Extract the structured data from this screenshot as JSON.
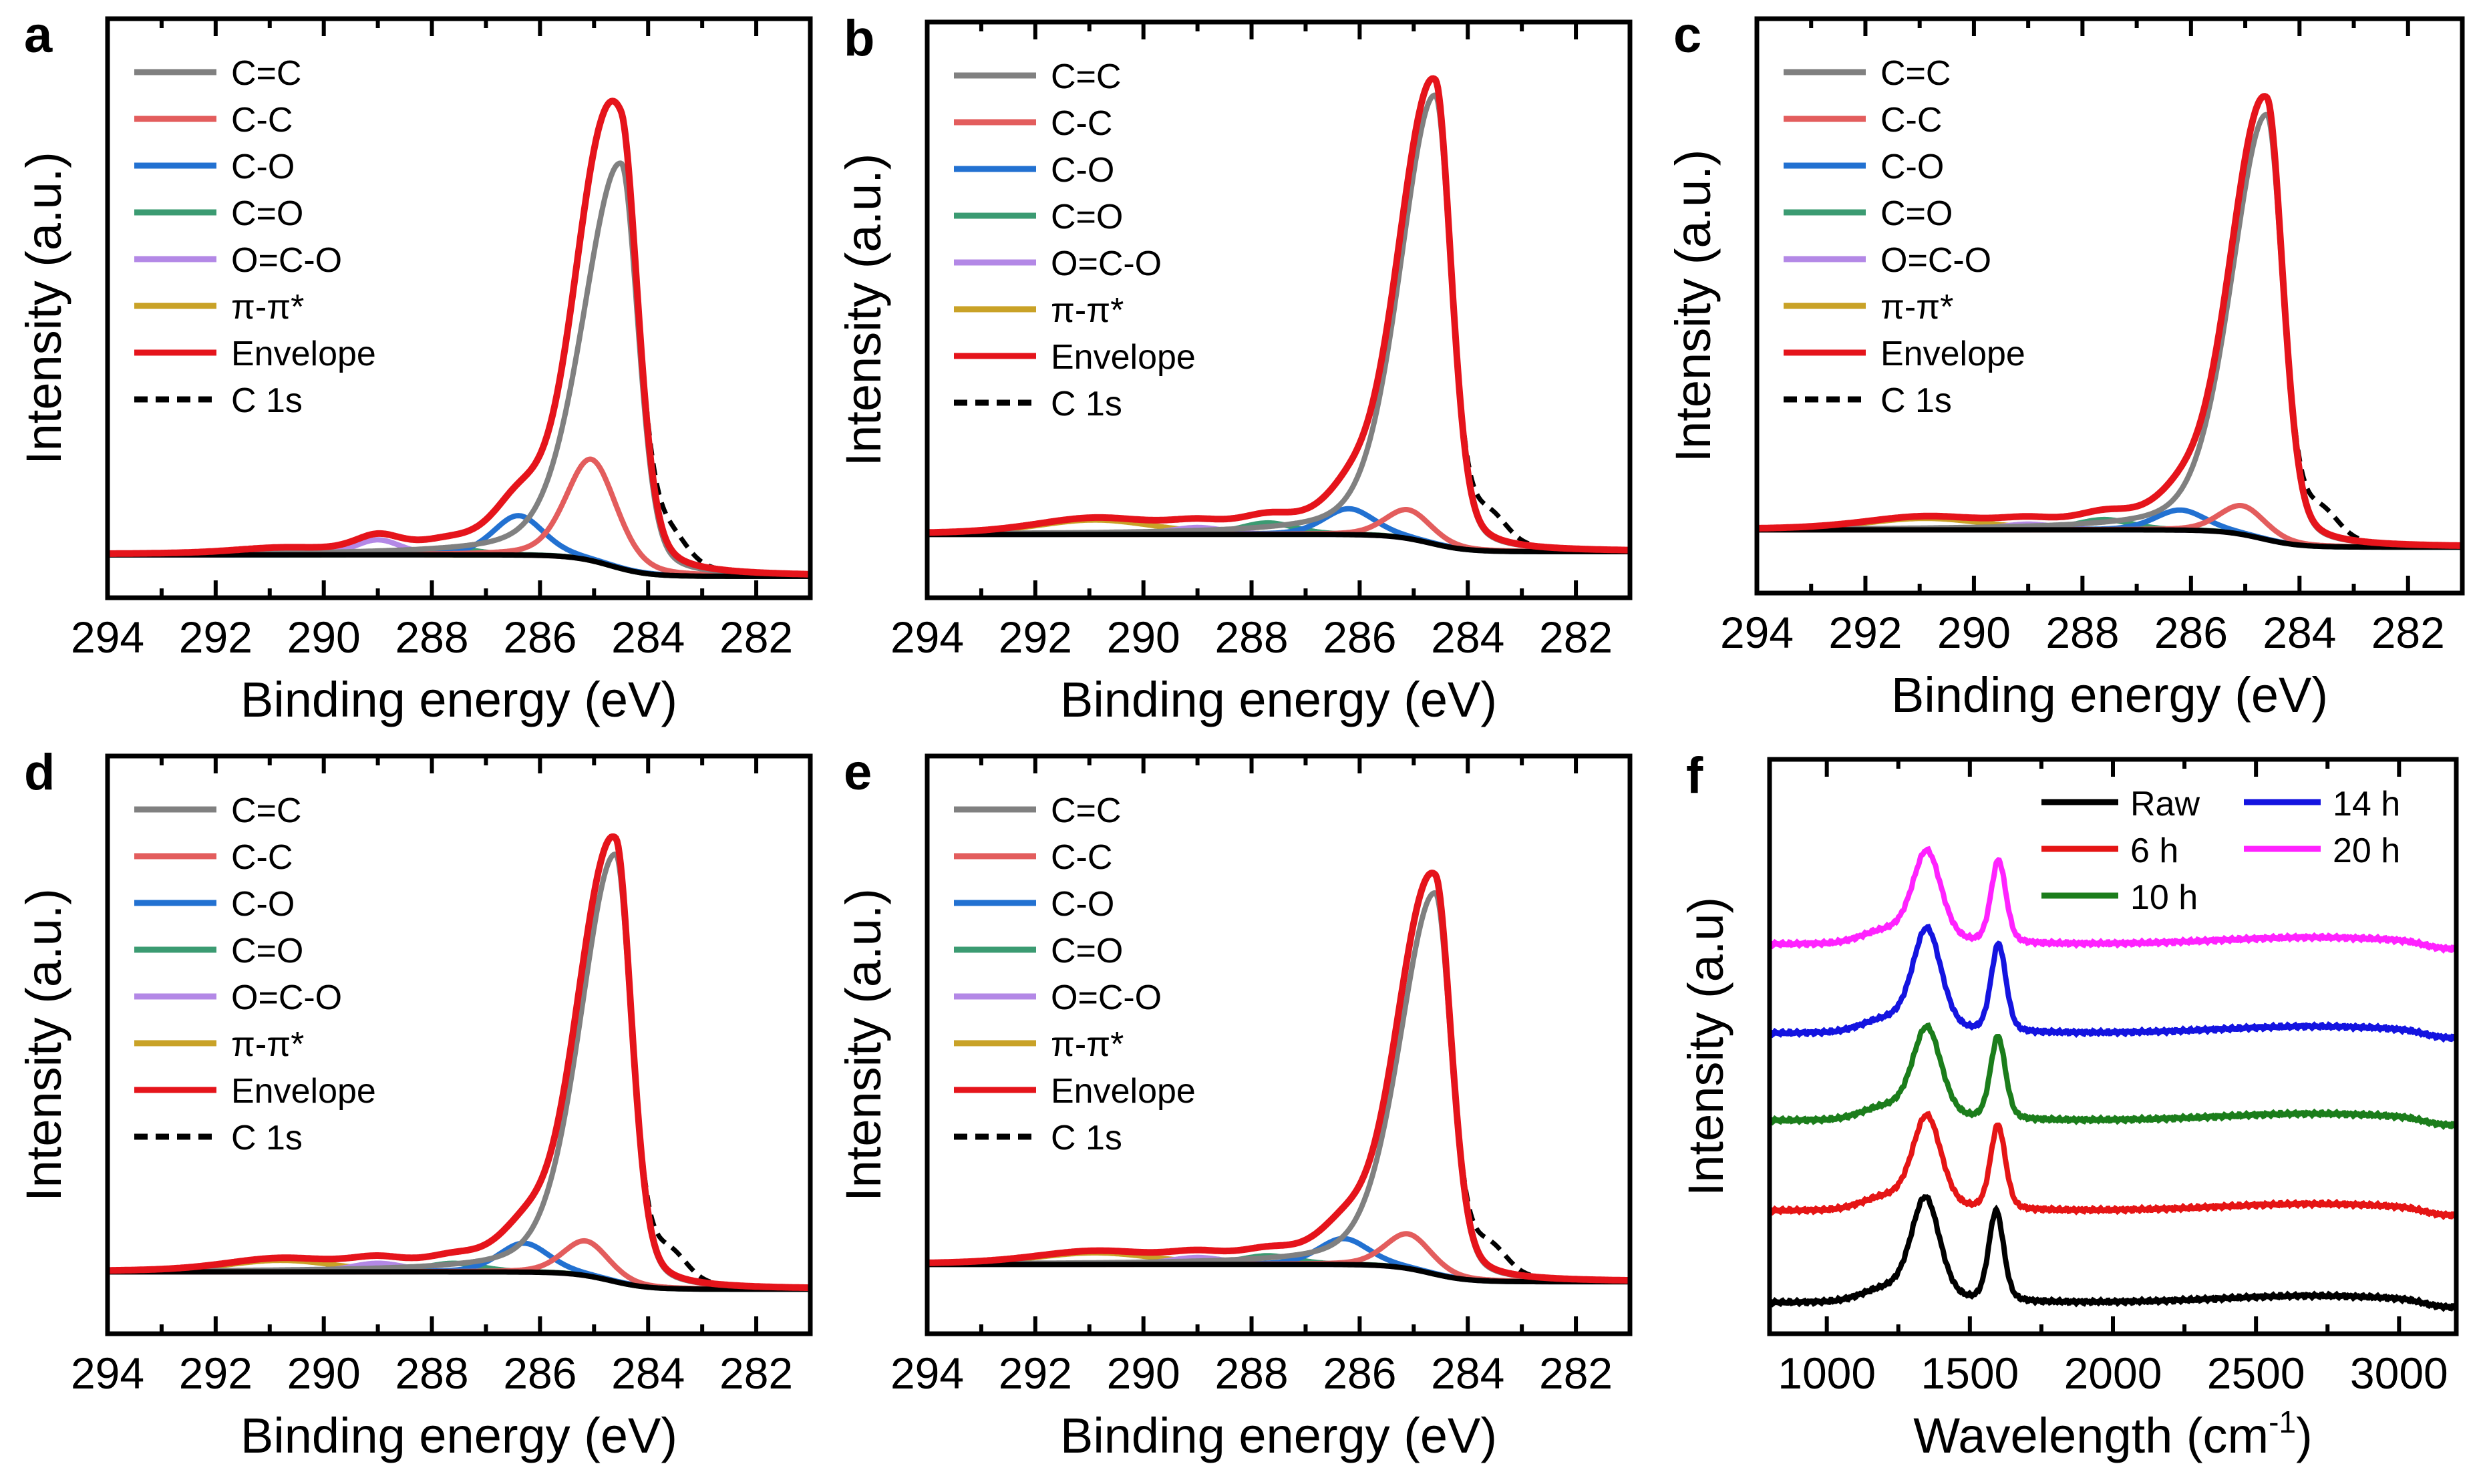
{
  "chart_data": [
    {
      "panel": "a",
      "type": "line",
      "xlabel": "Binding energy (eV)",
      "ylabel": "Intensity (a.u.)",
      "xlim": [
        294,
        281
      ],
      "ylim": [
        0,
        1
      ],
      "grid": false,
      "reversed_x": true,
      "xticks": [
        "294",
        "292",
        "290",
        "288",
        "286",
        "284",
        "282"
      ],
      "legend_position": "top-left",
      "legend": [
        "C=C",
        "C-C",
        "C-O",
        "C=O",
        "O=C-O",
        "π-π*",
        "Envelope",
        "C 1s"
      ],
      "background": {
        "high_be": 0.074,
        "low_be": 0.037
      },
      "components": [
        {
          "name": "C=C",
          "center": 284.5,
          "height": 0.7,
          "fwhm": 0.75
        },
        {
          "name": "C-C",
          "center": 285.05,
          "height": 0.175,
          "fwhm": 1.1
        },
        {
          "name": "C-O",
          "center": 286.4,
          "height": 0.068,
          "fwhm": 1.1
        },
        {
          "name": "C=O",
          "center": 287.7,
          "height": 0.012,
          "fwhm": 1.2
        },
        {
          "name": "O=C-O",
          "center": 289.0,
          "height": 0.026,
          "fwhm": 1.0
        },
        {
          "name": "π-π*",
          "center": 290.8,
          "height": 0.008,
          "fwhm": 2.0
        }
      ]
    },
    {
      "panel": "b",
      "type": "line",
      "xlabel": "Binding energy (eV)",
      "ylabel": "Intensity (a.u.)",
      "xlim": [
        294,
        281
      ],
      "ylim": [
        0,
        1
      ],
      "grid": false,
      "reversed_x": true,
      "xticks": [
        "294",
        "292",
        "290",
        "288",
        "286",
        "284",
        "282"
      ],
      "legend_position": "top-left",
      "legend": [
        "C=C",
        "C-C",
        "C-O",
        "C=O",
        "O=C-O",
        "π-π*",
        "Envelope",
        "C 1s"
      ],
      "background": {
        "high_be": 0.11,
        "low_be": 0.08
      },
      "components": [
        {
          "name": "C=C",
          "center": 284.6,
          "height": 0.78,
          "fwhm": 0.7
        },
        {
          "name": "C-C",
          "center": 285.1,
          "height": 0.05,
          "fwhm": 1.0
        },
        {
          "name": "C-O",
          "center": 286.2,
          "height": 0.045,
          "fwhm": 1.1
        },
        {
          "name": "C=O",
          "center": 287.7,
          "height": 0.02,
          "fwhm": 1.2
        },
        {
          "name": "O=C-O",
          "center": 289.0,
          "height": 0.012,
          "fwhm": 1.2
        },
        {
          "name": "π-π*",
          "center": 290.9,
          "height": 0.025,
          "fwhm": 2.6
        }
      ]
    },
    {
      "panel": "c",
      "type": "line",
      "xlabel": "Binding energy (eV)",
      "ylabel": "Intensity (a.u.)",
      "xlim": [
        294,
        281
      ],
      "ylim": [
        0,
        1
      ],
      "grid": false,
      "reversed_x": true,
      "xticks": [
        "294",
        "292",
        "290",
        "288",
        "286",
        "284",
        "282"
      ],
      "legend_position": "top-left",
      "legend": [
        "C=C",
        "C-C",
        "C-O",
        "C=O",
        "O=C-O",
        "π-π*",
        "Envelope",
        "C 1s"
      ],
      "background": {
        "high_be": 0.11,
        "low_be": 0.08
      },
      "components": [
        {
          "name": "C=C",
          "center": 284.6,
          "height": 0.74,
          "fwhm": 0.7
        },
        {
          "name": "C-C",
          "center": 285.05,
          "height": 0.05,
          "fwhm": 1.0
        },
        {
          "name": "C-O",
          "center": 286.2,
          "height": 0.035,
          "fwhm": 1.1
        },
        {
          "name": "C=O",
          "center": 287.6,
          "height": 0.018,
          "fwhm": 1.2
        },
        {
          "name": "O=C-O",
          "center": 289.0,
          "height": 0.01,
          "fwhm": 1.2
        },
        {
          "name": "π-π*",
          "center": 290.9,
          "height": 0.02,
          "fwhm": 2.6
        }
      ]
    },
    {
      "panel": "d",
      "type": "line",
      "xlabel": "Binding energy (eV)",
      "ylabel": "Intensity (a.u.)",
      "xlim": [
        294,
        281
      ],
      "ylim": [
        0,
        1
      ],
      "grid": false,
      "reversed_x": true,
      "xticks": [
        "294",
        "292",
        "290",
        "288",
        "286",
        "284",
        "282"
      ],
      "legend_position": "top-left",
      "legend": [
        "C=C",
        "C-C",
        "C-O",
        "C=O",
        "O=C-O",
        "π-π*",
        "Envelope",
        "C 1s"
      ],
      "background": {
        "high_be": 0.107,
        "low_be": 0.077
      },
      "components": [
        {
          "name": "C=C",
          "center": 284.6,
          "height": 0.74,
          "fwhm": 0.7
        },
        {
          "name": "C-C",
          "center": 285.15,
          "height": 0.06,
          "fwhm": 1.0
        },
        {
          "name": "C-O",
          "center": 286.3,
          "height": 0.05,
          "fwhm": 1.1
        },
        {
          "name": "C=O",
          "center": 287.6,
          "height": 0.015,
          "fwhm": 1.2
        },
        {
          "name": "O=C-O",
          "center": 289.0,
          "height": 0.015,
          "fwhm": 1.2
        },
        {
          "name": "π-π*",
          "center": 290.8,
          "height": 0.02,
          "fwhm": 2.4
        }
      ]
    },
    {
      "panel": "e",
      "type": "line",
      "xlabel": "Binding energy (eV)",
      "ylabel": "Intensity (a.u.)",
      "xlim": [
        294,
        281
      ],
      "ylim": [
        0,
        1
      ],
      "grid": false,
      "reversed_x": true,
      "xticks": [
        "294",
        "292",
        "290",
        "288",
        "286",
        "284",
        "282"
      ],
      "legend_position": "top-left",
      "legend": [
        "C=C",
        "C-C",
        "C-O",
        "C=O",
        "O=C-O",
        "π-π*",
        "Envelope",
        "C 1s"
      ],
      "background": {
        "high_be": 0.12,
        "low_be": 0.09
      },
      "components": [
        {
          "name": "C=C",
          "center": 284.6,
          "height": 0.66,
          "fwhm": 0.7
        },
        {
          "name": "C-C",
          "center": 285.1,
          "height": 0.06,
          "fwhm": 1.0
        },
        {
          "name": "C-O",
          "center": 286.3,
          "height": 0.045,
          "fwhm": 1.1
        },
        {
          "name": "C=O",
          "center": 287.7,
          "height": 0.015,
          "fwhm": 1.2
        },
        {
          "name": "O=C-O",
          "center": 289.0,
          "height": 0.012,
          "fwhm": 1.2
        },
        {
          "name": "π-π*",
          "center": 290.9,
          "height": 0.02,
          "fwhm": 2.6
        }
      ]
    },
    {
      "panel": "f",
      "type": "line",
      "xlabel": "Wavelength (cm",
      "xlabel_sup": "-1",
      "xlabel_end": ")",
      "ylabel": "Intensity (a.u)",
      "xlim": [
        800,
        3200
      ],
      "ylim": [
        0,
        1
      ],
      "grid": false,
      "xticks": [
        "1000",
        "1500",
        "2000",
        "2500",
        "3000"
      ],
      "legend_position": "top-right",
      "series": [
        {
          "name": "Raw",
          "offset": 0.054,
          "d_center": 1345,
          "d_height": 0.18,
          "g_center": 1592,
          "g_height": 0.175
        },
        {
          "name": "6 h",
          "offset": 0.214,
          "d_center": 1350,
          "d_height": 0.163,
          "g_center": 1598,
          "g_height": 0.163
        },
        {
          "name": "10 h",
          "offset": 0.371,
          "d_center": 1350,
          "d_height": 0.16,
          "g_center": 1598,
          "g_height": 0.16
        },
        {
          "name": "14 h",
          "offset": 0.523,
          "d_center": 1350,
          "d_height": 0.18,
          "g_center": 1600,
          "g_height": 0.17
        },
        {
          "name": "20 h",
          "offset": 0.678,
          "d_center": 1350,
          "d_height": 0.16,
          "g_center": 1600,
          "g_height": 0.16
        }
      ]
    }
  ],
  "colors": {
    "C=C": "#808080",
    "C-C": "#e35d5d",
    "C-O": "#2271d1",
    "C=O": "#3b9b72",
    "O=C-O": "#b388e6",
    "π-π*": "#c9a227",
    "Envelope": "#e5141b",
    "C 1s": "#000000",
    "background": "#000000",
    "Raw": "#000000",
    "6 h": "#e51515",
    "10 h": "#1b7d1b",
    "14 h": "#1414e0",
    "20 h": "#ff22ff"
  }
}
